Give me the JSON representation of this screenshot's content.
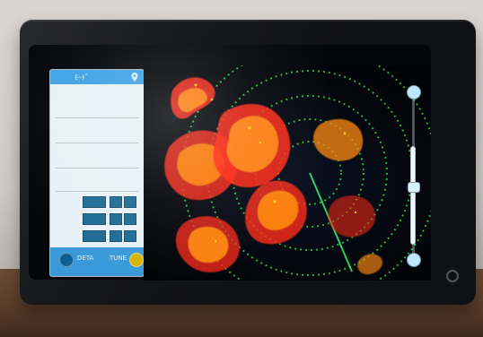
{
  "scene": {
    "background": "#cfcac6",
    "table": "#5a3d2a",
    "device_bezel": "#101114",
    "screen_bg": "#03050a"
  },
  "left_panel": {
    "header_text": "ﾓｰﾄﾞ",
    "bottom": {
      "left_label": "DETA",
      "right_label": "TUNE"
    }
  },
  "radar": {
    "ring_color": "#2eea4d",
    "echo_red": "#ff2a18",
    "echo_orange": "#ff8a12",
    "echo_yellow": "#ffd21b",
    "bearing_line": "#3cff72"
  },
  "icons": {
    "pin_icon": "location-pin-icon",
    "power_icon": "power-icon",
    "range_handle_icon": "range-handle-icon"
  }
}
